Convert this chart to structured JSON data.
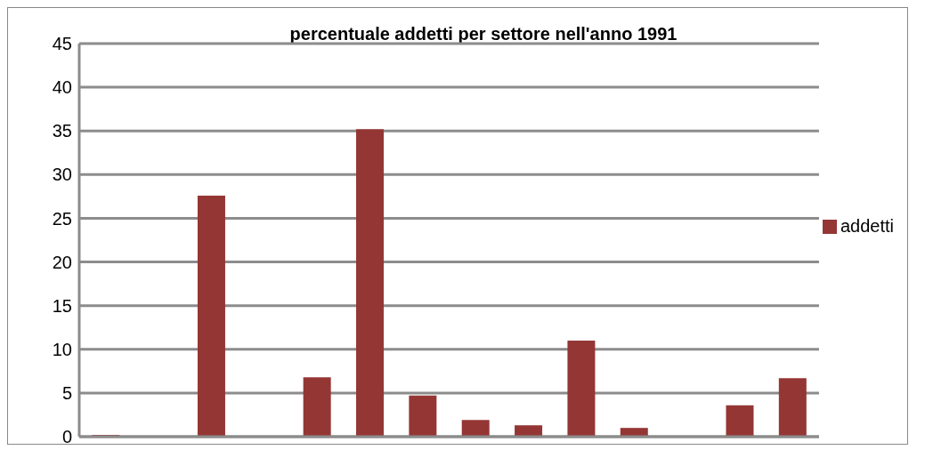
{
  "chart_data": {
    "type": "bar",
    "title": "percentuale addetti per settore nell'anno 1991",
    "categories": [
      null,
      null,
      null,
      null,
      null,
      null,
      null,
      null,
      null,
      null,
      null,
      null,
      null,
      null
    ],
    "series": [
      {
        "name": "addetti",
        "color": "#943634",
        "values": [
          0.2,
          0,
          27.6,
          0,
          6.8,
          35.2,
          4.7,
          1.9,
          1.3,
          11,
          1,
          0,
          3.6,
          6.7
        ]
      }
    ],
    "ylim": [
      0,
      45
    ],
    "yticks": [
      0,
      5,
      10,
      15,
      20,
      25,
      30,
      35,
      40,
      45
    ],
    "grid": "y",
    "legend": "right"
  }
}
